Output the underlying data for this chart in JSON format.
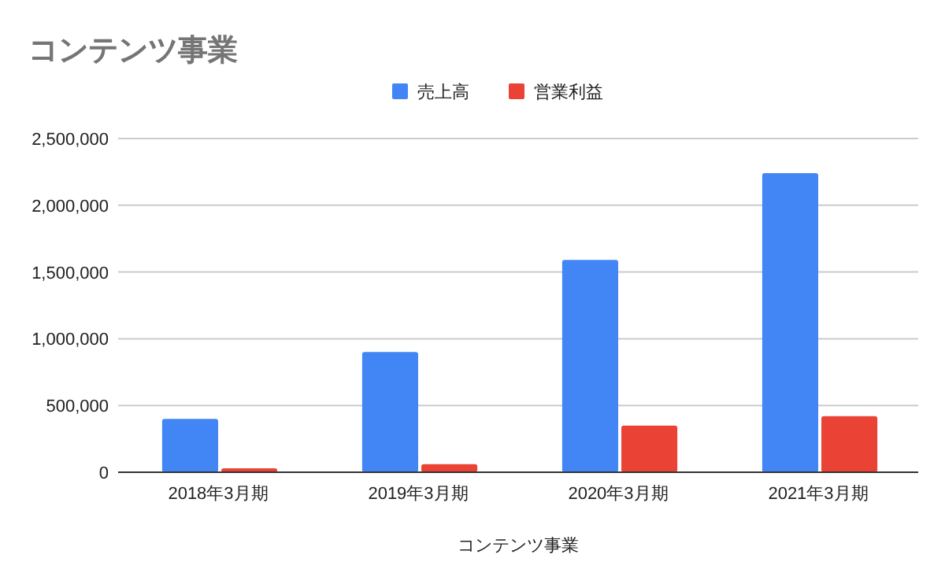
{
  "chart_data": {
    "type": "bar",
    "title": "コンテンツ事業",
    "xlabel": "コンテンツ事業",
    "categories": [
      "2018年3月期",
      "2019年3月期",
      "2020年3月期",
      "2021年3月期"
    ],
    "series": [
      {
        "name": "売上高",
        "color": "#4285f4",
        "values": [
          400000,
          900000,
          1590000,
          2240000
        ]
      },
      {
        "name": "営業利益",
        "color": "#ea4335",
        "values": [
          30000,
          60000,
          350000,
          420000
        ]
      }
    ],
    "ylim": [
      0,
      2500000
    ],
    "yticks": [
      {
        "value": 0,
        "label": "0"
      },
      {
        "value": 500000,
        "label": "500,000"
      },
      {
        "value": 1000000,
        "label": "1,000,000"
      },
      {
        "value": 1500000,
        "label": "1,500,000"
      },
      {
        "value": 2000000,
        "label": "2,000,000"
      },
      {
        "value": 2500000,
        "label": "2,500,000"
      }
    ],
    "grid": "y",
    "legend": "top"
  }
}
